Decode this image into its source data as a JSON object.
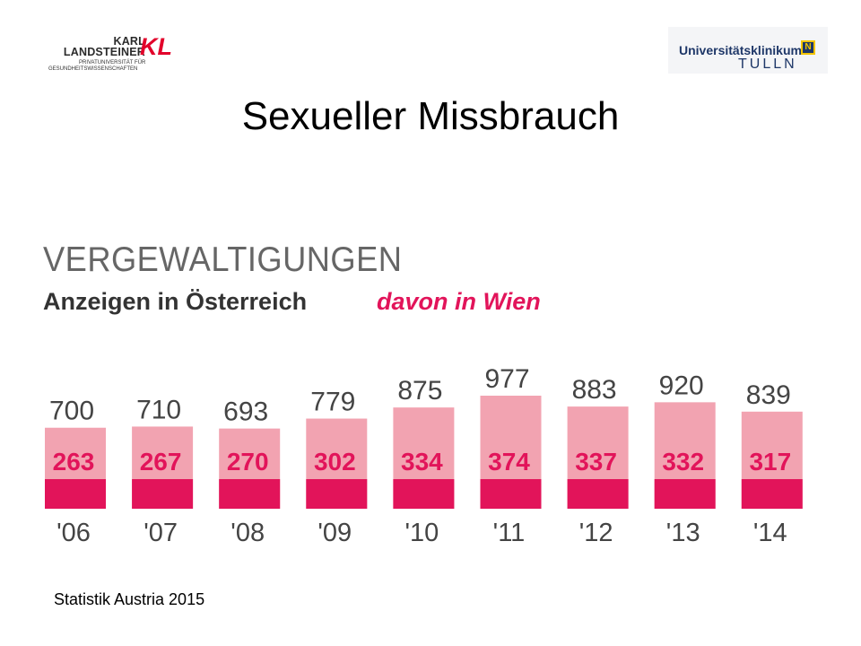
{
  "logos": {
    "left": {
      "line1": "KARL",
      "line2": "LANDSTEINER",
      "sub1": "PRIVATUNIVERSITÄT FÜR",
      "sub2": "GESUNDHEITSWISSENSCHAFTEN",
      "mark": "KL",
      "accent_color": "#e2002a"
    },
    "right": {
      "line1": "Universitätsklinikum",
      "line2": "TULLN",
      "badge": "N",
      "text_color": "#1e3768",
      "badge_color": "#f2c400"
    }
  },
  "slide_title": "Sexueller Missbrauch",
  "source": "Statistik Austria 2015",
  "chart_data": {
    "type": "bar",
    "title": "VERGEWALTIGUNGEN",
    "subtitle": "Anzeigen in Österreich",
    "categories": [
      "'06",
      "'07",
      "'08",
      "'09",
      "'10",
      "'11",
      "'12",
      "'13",
      "'14"
    ],
    "series": [
      {
        "name": "Anzeigen in Österreich",
        "values": [
          700,
          710,
          693,
          779,
          875,
          977,
          883,
          920,
          839
        ],
        "color": "#f2a3b1"
      },
      {
        "name": "davon in Wien",
        "values": [
          263,
          267,
          270,
          302,
          334,
          374,
          337,
          332,
          317
        ],
        "color": "#e2145a"
      }
    ],
    "overlap": true,
    "grid": false,
    "legend_position": "top-right",
    "colors": {
      "total": "#f2a3b1",
      "vienna": "#e2145a",
      "title": "#666666",
      "labels": "#444444",
      "inner_labels": "#e2145a"
    }
  }
}
